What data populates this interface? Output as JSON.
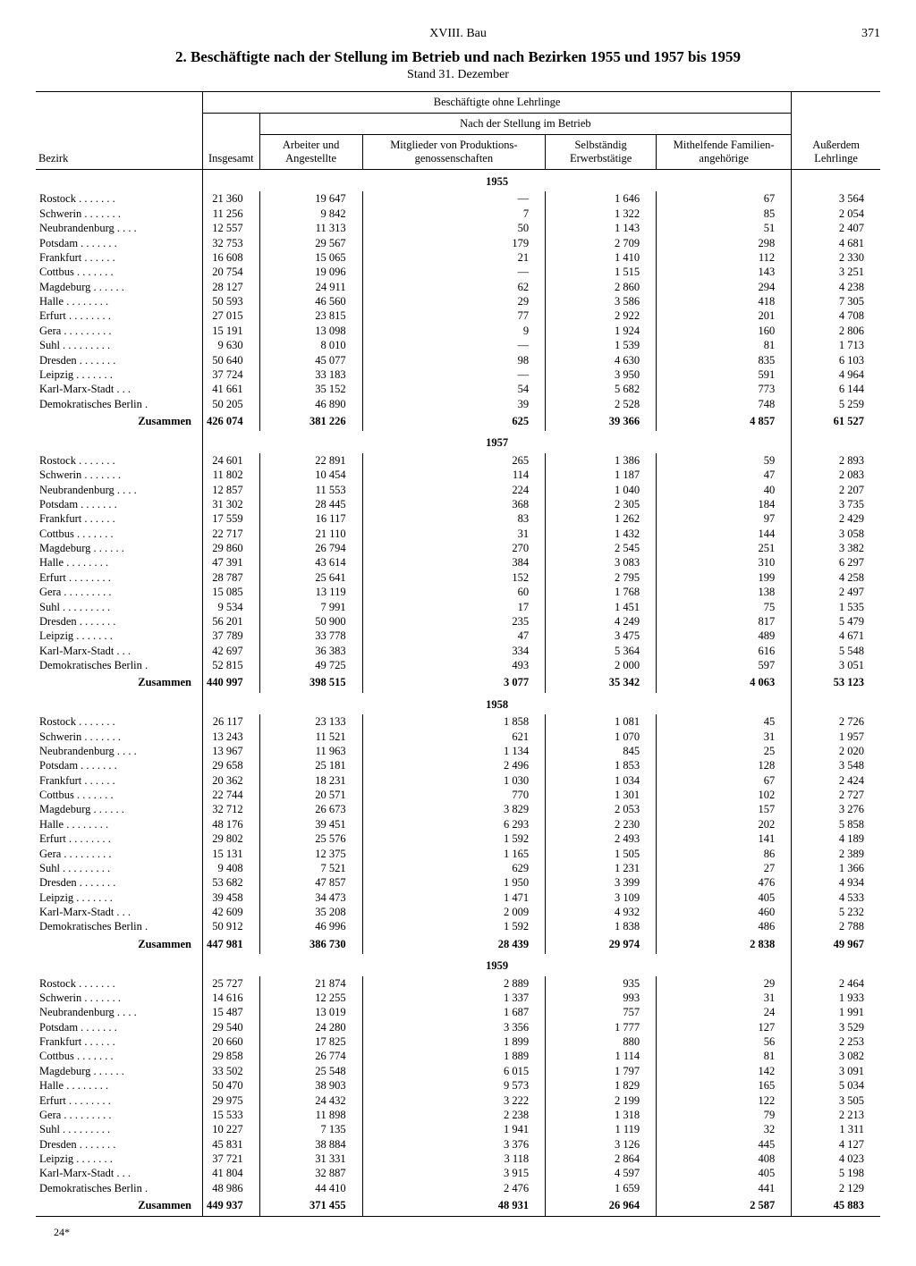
{
  "page": {
    "section": "XVIII. Bau",
    "number": "371",
    "title": "2. Beschäftigte nach der Stellung im Betrieb und nach Bezirken 1955 und 1957 bis 1959",
    "subtitle": "Stand 31. Dezember",
    "footer": "24*"
  },
  "headers": {
    "bezirk": "Bezirk",
    "ohne_lehrlinge": "Beschäftigte ohne Lehrlinge",
    "nach_stellung": "Nach der Stellung im Betrieb",
    "insgesamt": "Insgesamt",
    "arbeiter": "Arbeiter und Angestellte",
    "mitglieder": "Mitglieder von Produktions-genossenschaften",
    "selbstaendig": "Selbständig Erwerbstätige",
    "mithelfende": "Mithelfende Familien-angehörige",
    "lehrlinge": "Außerdem Lehrlinge",
    "zusammen": "Zusammen"
  },
  "bezirke": [
    "Rostock",
    "Schwerin",
    "Neubrandenburg",
    "Potsdam",
    "Frankfurt",
    "Cottbus",
    "Magdeburg",
    "Halle",
    "Erfurt",
    "Gera",
    "Suhl",
    "Dresden",
    "Leipzig",
    "Karl-Marx-Stadt",
    "Demokratisches Berlin"
  ],
  "years": [
    {
      "year": "1955",
      "rows": [
        [
          "21 360",
          "19 647",
          "—",
          "1 646",
          "67",
          "3 564"
        ],
        [
          "11 256",
          "9 842",
          "7",
          "1 322",
          "85",
          "2 054"
        ],
        [
          "12 557",
          "11 313",
          "50",
          "1 143",
          "51",
          "2 407"
        ],
        [
          "32 753",
          "29 567",
          "179",
          "2 709",
          "298",
          "4 681"
        ],
        [
          "16 608",
          "15 065",
          "21",
          "1 410",
          "112",
          "2 330"
        ],
        [
          "20 754",
          "19 096",
          "—",
          "1 515",
          "143",
          "3 251"
        ],
        [
          "28 127",
          "24 911",
          "62",
          "2 860",
          "294",
          "4 238"
        ],
        [
          "50 593",
          "46 560",
          "29",
          "3 586",
          "418",
          "7 305"
        ],
        [
          "27 015",
          "23 815",
          "77",
          "2 922",
          "201",
          "4 708"
        ],
        [
          "15 191",
          "13 098",
          "9",
          "1 924",
          "160",
          "2 806"
        ],
        [
          "9 630",
          "8 010",
          "—",
          "1 539",
          "81",
          "1 713"
        ],
        [
          "50 640",
          "45 077",
          "98",
          "4 630",
          "835",
          "6 103"
        ],
        [
          "37 724",
          "33 183",
          "—",
          "3 950",
          "591",
          "4 964"
        ],
        [
          "41 661",
          "35 152",
          "54",
          "5 682",
          "773",
          "6 144"
        ],
        [
          "50 205",
          "46 890",
          "39",
          "2 528",
          "748",
          "5 259"
        ]
      ],
      "sum": [
        "426 074",
        "381 226",
        "625",
        "39 366",
        "4 857",
        "61 527"
      ]
    },
    {
      "year": "1957",
      "rows": [
        [
          "24 601",
          "22 891",
          "265",
          "1 386",
          "59",
          "2 893"
        ],
        [
          "11 802",
          "10 454",
          "114",
          "1 187",
          "47",
          "2 083"
        ],
        [
          "12 857",
          "11 553",
          "224",
          "1 040",
          "40",
          "2 207"
        ],
        [
          "31 302",
          "28 445",
          "368",
          "2 305",
          "184",
          "3 735"
        ],
        [
          "17 559",
          "16 117",
          "83",
          "1 262",
          "97",
          "2 429"
        ],
        [
          "22 717",
          "21 110",
          "31",
          "1 432",
          "144",
          "3 058"
        ],
        [
          "29 860",
          "26 794",
          "270",
          "2 545",
          "251",
          "3 382"
        ],
        [
          "47 391",
          "43 614",
          "384",
          "3 083",
          "310",
          "6 297"
        ],
        [
          "28 787",
          "25 641",
          "152",
          "2 795",
          "199",
          "4 258"
        ],
        [
          "15 085",
          "13 119",
          "60",
          "1 768",
          "138",
          "2 497"
        ],
        [
          "9 534",
          "7 991",
          "17",
          "1 451",
          "75",
          "1 535"
        ],
        [
          "56 201",
          "50 900",
          "235",
          "4 249",
          "817",
          "5 479"
        ],
        [
          "37 789",
          "33 778",
          "47",
          "3 475",
          "489",
          "4 671"
        ],
        [
          "42 697",
          "36 383",
          "334",
          "5 364",
          "616",
          "5 548"
        ],
        [
          "52 815",
          "49 725",
          "493",
          "2 000",
          "597",
          "3 051"
        ]
      ],
      "sum": [
        "440 997",
        "398 515",
        "3 077",
        "35 342",
        "4 063",
        "53 123"
      ]
    },
    {
      "year": "1958",
      "rows": [
        [
          "26 117",
          "23 133",
          "1 858",
          "1 081",
          "45",
          "2 726"
        ],
        [
          "13 243",
          "11 521",
          "621",
          "1 070",
          "31",
          "1 957"
        ],
        [
          "13 967",
          "11 963",
          "1 134",
          "845",
          "25",
          "2 020"
        ],
        [
          "29 658",
          "25 181",
          "2 496",
          "1 853",
          "128",
          "3 548"
        ],
        [
          "20 362",
          "18 231",
          "1 030",
          "1 034",
          "67",
          "2 424"
        ],
        [
          "22 744",
          "20 571",
          "770",
          "1 301",
          "102",
          "2 727"
        ],
        [
          "32 712",
          "26 673",
          "3 829",
          "2 053",
          "157",
          "3 276"
        ],
        [
          "48 176",
          "39 451",
          "6 293",
          "2 230",
          "202",
          "5 858"
        ],
        [
          "29 802",
          "25 576",
          "1 592",
          "2 493",
          "141",
          "4 189"
        ],
        [
          "15 131",
          "12 375",
          "1 165",
          "1 505",
          "86",
          "2 389"
        ],
        [
          "9 408",
          "7 521",
          "629",
          "1 231",
          "27",
          "1 366"
        ],
        [
          "53 682",
          "47 857",
          "1 950",
          "3 399",
          "476",
          "4 934"
        ],
        [
          "39 458",
          "34 473",
          "1 471",
          "3 109",
          "405",
          "4 533"
        ],
        [
          "42 609",
          "35 208",
          "2 009",
          "4 932",
          "460",
          "5 232"
        ],
        [
          "50 912",
          "46 996",
          "1 592",
          "1 838",
          "486",
          "2 788"
        ]
      ],
      "sum": [
        "447 981",
        "386 730",
        "28 439",
        "29 974",
        "2 838",
        "49 967"
      ]
    },
    {
      "year": "1959",
      "rows": [
        [
          "25 727",
          "21 874",
          "2 889",
          "935",
          "29",
          "2 464"
        ],
        [
          "14 616",
          "12 255",
          "1 337",
          "993",
          "31",
          "1 933"
        ],
        [
          "15 487",
          "13 019",
          "1 687",
          "757",
          "24",
          "1 991"
        ],
        [
          "29 540",
          "24 280",
          "3 356",
          "1 777",
          "127",
          "3 529"
        ],
        [
          "20 660",
          "17 825",
          "1 899",
          "880",
          "56",
          "2 253"
        ],
        [
          "29 858",
          "26 774",
          "1 889",
          "1 114",
          "81",
          "3 082"
        ],
        [
          "33 502",
          "25 548",
          "6 015",
          "1 797",
          "142",
          "3 091"
        ],
        [
          "50 470",
          "38 903",
          "9 573",
          "1 829",
          "165",
          "5 034"
        ],
        [
          "29 975",
          "24 432",
          "3 222",
          "2 199",
          "122",
          "3 505"
        ],
        [
          "15 533",
          "11 898",
          "2 238",
          "1 318",
          "79",
          "2 213"
        ],
        [
          "10 227",
          "7 135",
          "1 941",
          "1 119",
          "32",
          "1 311"
        ],
        [
          "45 831",
          "38 884",
          "3 376",
          "3 126",
          "445",
          "4 127"
        ],
        [
          "37 721",
          "31 331",
          "3 118",
          "2 864",
          "408",
          "4 023"
        ],
        [
          "41 804",
          "32 887",
          "3 915",
          "4 597",
          "405",
          "5 198"
        ],
        [
          "48 986",
          "44 410",
          "2 476",
          "1 659",
          "441",
          "2 129"
        ]
      ],
      "sum": [
        "449 937",
        "371 455",
        "48 931",
        "26 964",
        "2 587",
        "45 883"
      ]
    }
  ]
}
